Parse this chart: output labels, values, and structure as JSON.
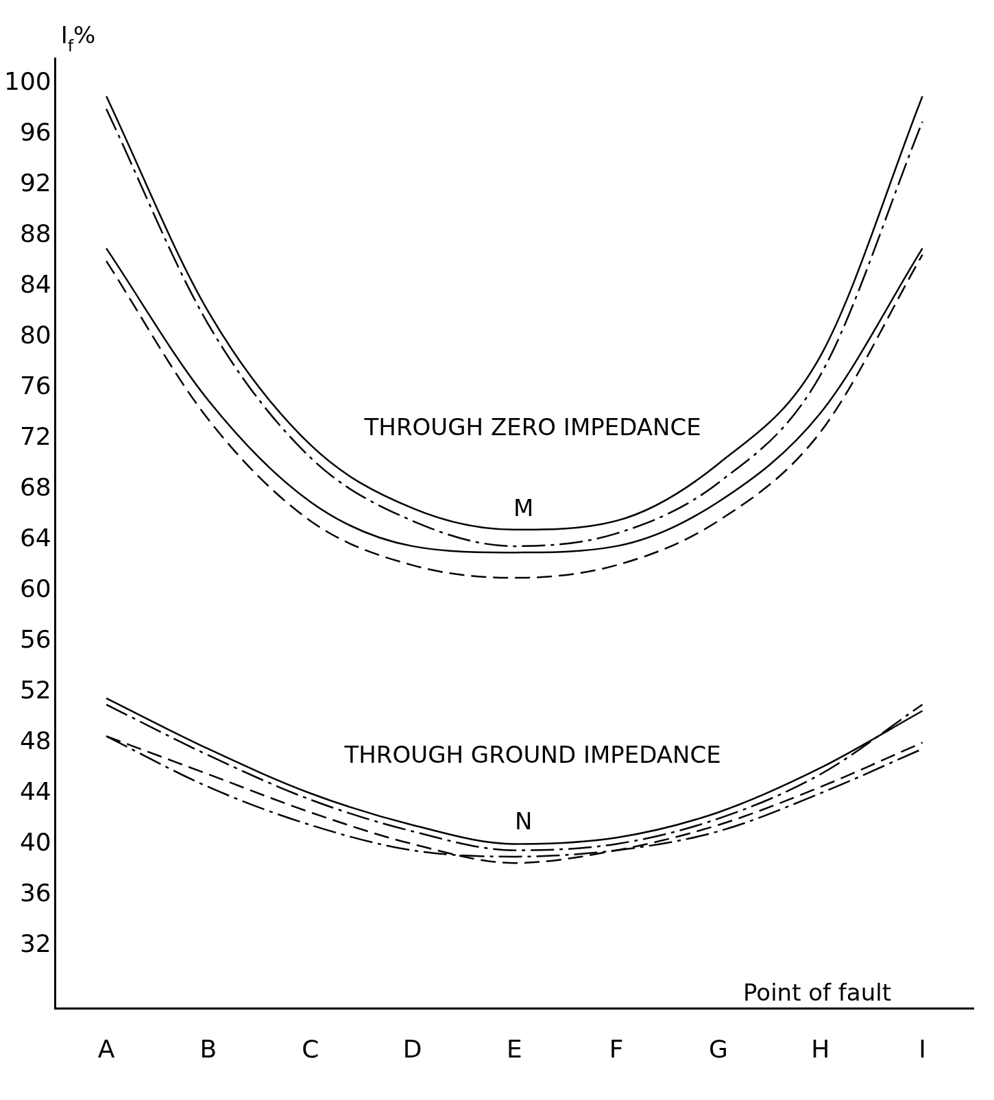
{
  "chart_data": {
    "type": "line",
    "xlabel": "Point of fault",
    "ylabel": "I$_{f}$%",
    "categories": [
      "A",
      "B",
      "C",
      "D",
      "E",
      "F",
      "G",
      "H",
      "I"
    ],
    "series": [
      {
        "color": "#000000",
        "line_style": "solid",
        "values": [
          99,
          82,
          71.5,
          66.5,
          64.8,
          65.5,
          70,
          78.5,
          99
        ]
      },
      {
        "color": "#000000",
        "line_style": "dashdot",
        "values": [
          98,
          81,
          70.5,
          65.5,
          63.5,
          64.5,
          68.5,
          77,
          97
        ]
      },
      {
        "color": "#000000",
        "line_style": "solid",
        "values": [
          87,
          75,
          67,
          63.5,
          63,
          63.5,
          67,
          74,
          87
        ]
      },
      {
        "color": "#000000",
        "line_style": "dashed",
        "values": [
          86,
          73.5,
          65.5,
          62,
          61,
          62,
          65.5,
          72.5,
          86.5
        ]
      },
      {
        "color": "#000000",
        "line_style": "solid",
        "values": [
          51.5,
          47.5,
          44,
          41.5,
          40,
          40.5,
          42.5,
          46,
          50.5
        ]
      },
      {
        "color": "#000000",
        "line_style": "dashdot",
        "values": [
          51,
          47,
          43.5,
          41,
          39.5,
          40,
          42,
          45.5,
          51
        ]
      },
      {
        "color": "#000000",
        "line_style": "dashed",
        "values": [
          48.5,
          45.5,
          42.5,
          40,
          38.5,
          39.5,
          41.5,
          44.5,
          48
        ]
      },
      {
        "color": "#000000",
        "line_style": "dashdot",
        "values": [
          48.5,
          44.5,
          41.5,
          39.5,
          39,
          39.5,
          41,
          44,
          47.5
        ]
      }
    ],
    "ylim": [
      27,
      102
    ],
    "yticks": [
      32,
      36,
      40,
      44,
      48,
      52,
      56,
      60,
      64,
      68,
      72,
      76,
      80,
      84,
      88,
      92,
      96,
      100
    ],
    "grid": false,
    "legend": false,
    "marker": "none",
    "annotations": [
      "THROUGH ZERO IMPEDANCE",
      "M",
      "THROUGH GROUND IMPEDANCE",
      "N"
    ]
  }
}
